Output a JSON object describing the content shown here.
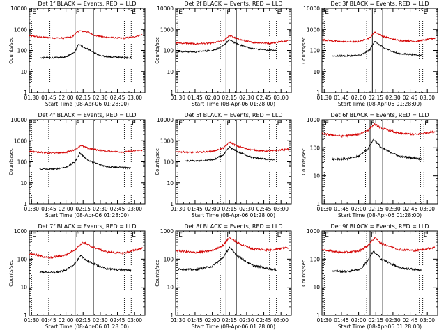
{
  "chart_data": [
    {
      "type": "line",
      "title": "Det 1f BLACK = Events, RED = LLD",
      "xlabel": "Start Time (08-Apr-06 01:28:00)",
      "ylabel": "Counts/sec",
      "x_ticks": [
        "01:30",
        "01:45",
        "02:00",
        "02:15",
        "02:30",
        "02:45",
        "03:00"
      ],
      "y_ticks": [
        "1",
        "10",
        "100",
        "1000",
        "10000"
      ],
      "y_scale": "log",
      "ylim": [
        1,
        10000
      ],
      "xlim": [
        "01:28",
        "03:09"
      ],
      "markers": [
        {
          "label": "E",
          "x": "01:30",
          "style": "dotted"
        },
        {
          "label": "",
          "x": "01:46",
          "style": "dotted"
        },
        {
          "label": "F",
          "x": "02:08",
          "style": "solid"
        },
        {
          "label": "",
          "x": "02:24",
          "style": "solid"
        },
        {
          "label": "",
          "x": "02:51",
          "style": "dotted"
        },
        {
          "label": "E",
          "x": "02:57",
          "style": "dotted"
        }
      ],
      "series": [
        {
          "color": "#d40000",
          "x": [
            "01:28",
            "01:40",
            "01:55",
            "02:05",
            "02:10",
            "02:12",
            "02:18",
            "02:26",
            "02:35",
            "02:50",
            "02:58",
            "03:07"
          ],
          "values": [
            500,
            420,
            380,
            420,
            750,
            850,
            780,
            500,
            420,
            380,
            420,
            560
          ]
        },
        {
          "color": "#000000",
          "x": [
            "01:38",
            "01:50",
            "02:00",
            "02:08",
            "02:11",
            "02:15",
            "02:22",
            "02:30",
            "02:42",
            "02:57"
          ],
          "values": [
            45,
            45,
            48,
            90,
            200,
            150,
            95,
            55,
            48,
            45
          ]
        }
      ]
    },
    {
      "type": "line",
      "title": "Det 2f BLACK = Events, RED = LLD",
      "xlabel": "Start Time (08-Apr-06 01:28:00)",
      "ylabel": "Counts/sec",
      "x_ticks": [
        "01:30",
        "01:45",
        "02:00",
        "02:15",
        "02:30",
        "02:45",
        "03:00"
      ],
      "y_ticks": [
        "1",
        "10",
        "100",
        "1000",
        "10000"
      ],
      "y_scale": "log",
      "ylim": [
        1,
        10000
      ],
      "xlim": [
        "01:28",
        "03:09"
      ],
      "markers": [
        {
          "label": "E",
          "x": "01:30",
          "style": "dotted"
        },
        {
          "label": "",
          "x": "02:07",
          "style": "dotted"
        },
        {
          "label": "F",
          "x": "02:12",
          "style": "solid"
        },
        {
          "label": "",
          "x": "02:21",
          "style": "solid"
        },
        {
          "label": "",
          "x": "02:50",
          "style": "dotted"
        },
        {
          "label": "E",
          "x": "02:56",
          "style": "dotted"
        }
      ],
      "series": [
        {
          "color": "#d40000",
          "x": [
            "01:28",
            "01:45",
            "02:00",
            "02:10",
            "02:15",
            "02:22",
            "02:35",
            "02:50",
            "03:07"
          ],
          "values": [
            230,
            210,
            220,
            300,
            520,
            350,
            240,
            220,
            300
          ]
        },
        {
          "color": "#000000",
          "x": [
            "01:30",
            "01:45",
            "02:00",
            "02:08",
            "02:15",
            "02:22",
            "02:35",
            "02:57"
          ],
          "values": [
            90,
            85,
            100,
            140,
            320,
            200,
            120,
            95
          ]
        }
      ]
    },
    {
      "type": "line",
      "title": "Det 3f BLACK = Events, RED = LLD",
      "xlabel": "Start Time (08-Apr-06 01:28:00)",
      "ylabel": "Counts/sec",
      "x_ticks": [
        "01:30",
        "01:45",
        "02:00",
        "02:15",
        "02:30",
        "02:45",
        "03:00"
      ],
      "y_ticks": [
        "1",
        "10",
        "100",
        "1000",
        "10000"
      ],
      "y_scale": "log",
      "ylim": [
        1,
        10000
      ],
      "xlim": [
        "01:28",
        "03:09"
      ],
      "markers": [
        {
          "label": "E",
          "x": "01:30",
          "style": "dotted"
        },
        {
          "label": "",
          "x": "02:07",
          "style": "dotted"
        },
        {
          "label": "F",
          "x": "02:12",
          "style": "solid"
        },
        {
          "label": "",
          "x": "02:21",
          "style": "solid"
        },
        {
          "label": "",
          "x": "02:53",
          "style": "dotted"
        },
        {
          "label": "E",
          "x": "02:56",
          "style": "dotted"
        }
      ],
      "series": [
        {
          "color": "#d40000",
          "x": [
            "01:28",
            "01:45",
            "02:00",
            "02:10",
            "02:14",
            "02:22",
            "02:35",
            "02:50",
            "03:07"
          ],
          "values": [
            320,
            260,
            260,
            400,
            750,
            450,
            300,
            270,
            380
          ]
        },
        {
          "color": "#000000",
          "x": [
            "01:37",
            "01:50",
            "02:02",
            "02:10",
            "02:14",
            "02:22",
            "02:35",
            "02:55"
          ],
          "values": [
            55,
            55,
            60,
            110,
            280,
            130,
            70,
            60
          ]
        }
      ]
    },
    {
      "type": "line",
      "title": "Det 4f BLACK = Events, RED = LLD",
      "xlabel": "Start Time (08-Apr-06 01:28:00)",
      "ylabel": "Counts/sec",
      "x_ticks": [
        "01:30",
        "01:45",
        "02:00",
        "02:15",
        "02:30",
        "02:45",
        "03:00"
      ],
      "y_ticks": [
        "1",
        "10",
        "100",
        "1000",
        "10000"
      ],
      "y_scale": "log",
      "ylim": [
        1,
        10000
      ],
      "xlim": [
        "01:28",
        "03:09"
      ],
      "markers": [
        {
          "label": "E",
          "x": "01:30",
          "style": "dotted"
        },
        {
          "label": "",
          "x": "01:45",
          "style": "dotted"
        },
        {
          "label": "F",
          "x": "02:08",
          "style": "solid"
        },
        {
          "label": "",
          "x": "02:24",
          "style": "solid"
        },
        {
          "label": "",
          "x": "02:51",
          "style": "dotted"
        },
        {
          "label": "E",
          "x": "02:57",
          "style": "dotted"
        }
      ],
      "series": [
        {
          "color": "#d40000",
          "x": [
            "01:28",
            "01:45",
            "02:00",
            "02:08",
            "02:13",
            "02:20",
            "02:35",
            "02:50",
            "03:07"
          ],
          "values": [
            320,
            260,
            280,
            380,
            600,
            420,
            320,
            290,
            360
          ]
        },
        {
          "color": "#000000",
          "x": [
            "01:37",
            "01:50",
            "02:00",
            "02:08",
            "02:12",
            "02:20",
            "02:35",
            "02:57"
          ],
          "values": [
            45,
            45,
            55,
            100,
            260,
            110,
            60,
            50
          ]
        }
      ]
    },
    {
      "type": "line",
      "title": "Det 5f BLACK = Events, RED = LLD",
      "xlabel": "Start Time (08-Apr-06 01:28:00)",
      "ylabel": "Counts/sec",
      "x_ticks": [
        "01:30",
        "01:45",
        "02:00",
        "02:15",
        "02:30",
        "02:45",
        "03:00"
      ],
      "y_ticks": [
        "1",
        "10",
        "100",
        "1000",
        "10000"
      ],
      "y_scale": "log",
      "ylim": [
        1,
        10000
      ],
      "xlim": [
        "01:28",
        "03:09"
      ],
      "markers": [
        {
          "label": "E",
          "x": "01:30",
          "style": "dotted"
        },
        {
          "label": "",
          "x": "02:07",
          "style": "dotted"
        },
        {
          "label": "F",
          "x": "02:12",
          "style": "solid"
        },
        {
          "label": "",
          "x": "02:21",
          "style": "solid"
        },
        {
          "label": "",
          "x": "02:50",
          "style": "dotted"
        },
        {
          "label": "E",
          "x": "02:56",
          "style": "dotted"
        }
      ],
      "series": [
        {
          "color": "#d40000",
          "x": [
            "01:28",
            "01:45",
            "02:00",
            "02:10",
            "02:15",
            "02:22",
            "02:35",
            "02:50",
            "03:07"
          ],
          "values": [
            300,
            280,
            310,
            450,
            850,
            550,
            360,
            320,
            400
          ]
        },
        {
          "color": "#000000",
          "x": [
            "01:37",
            "01:50",
            "02:02",
            "02:10",
            "02:15",
            "02:22",
            "02:35",
            "02:55"
          ],
          "values": [
            110,
            110,
            130,
            220,
            500,
            300,
            160,
            120
          ]
        }
      ]
    },
    {
      "type": "line",
      "title": "Det 6f BLACK = Events, RED = LLD",
      "xlabel": "Start Time (08-Apr-06 01:28:00)",
      "ylabel": "Counts/sec",
      "x_ticks": [
        "01:30",
        "01:45",
        "02:00",
        "02:15",
        "02:30",
        "02:45",
        "03:00"
      ],
      "y_ticks": [
        "1",
        "10",
        "100",
        "1000"
      ],
      "y_scale": "log",
      "ylim": [
        1,
        1000
      ],
      "xlim": [
        "01:28",
        "03:09"
      ],
      "markers": [
        {
          "label": "E",
          "x": "01:30",
          "style": "dotted"
        },
        {
          "label": "",
          "x": "02:06",
          "style": "dotted"
        },
        {
          "label": "F",
          "x": "02:10",
          "style": "solid"
        },
        {
          "label": "",
          "x": "02:21",
          "style": "solid"
        },
        {
          "label": "",
          "x": "02:54",
          "style": "dotted"
        },
        {
          "label": "E",
          "x": "02:57",
          "style": "dotted"
        }
      ],
      "series": [
        {
          "color": "#d40000",
          "x": [
            "01:28",
            "01:45",
            "02:00",
            "02:08",
            "02:14",
            "02:20",
            "02:35",
            "02:50",
            "03:07"
          ],
          "values": [
            320,
            260,
            300,
            420,
            700,
            500,
            330,
            300,
            380
          ]
        },
        {
          "color": "#000000",
          "x": [
            "01:37",
            "01:50",
            "02:00",
            "02:08",
            "02:13",
            "02:20",
            "02:35",
            "02:55"
          ],
          "values": [
            40,
            40,
            50,
            90,
            200,
            100,
            50,
            40
          ]
        }
      ]
    },
    {
      "type": "line",
      "title": "Det 7f BLACK = Events, RED = LLD",
      "xlabel": "Start Time (08-Apr-06 01:28:00)",
      "ylabel": "Counts/sec",
      "x_ticks": [
        "01:30",
        "01:45",
        "02:00",
        "02:15",
        "02:30",
        "02:45",
        "03:00"
      ],
      "y_ticks": [
        "1",
        "10",
        "100",
        "1000"
      ],
      "y_scale": "log",
      "ylim": [
        1,
        1000
      ],
      "xlim": [
        "01:28",
        "03:09"
      ],
      "markers": [
        {
          "label": "E",
          "x": "01:30",
          "style": "dotted"
        },
        {
          "label": "",
          "x": "01:45",
          "style": "dotted"
        },
        {
          "label": "F",
          "x": "02:08",
          "style": "solid"
        },
        {
          "label": "",
          "x": "02:24",
          "style": "solid"
        },
        {
          "label": "",
          "x": "02:51",
          "style": "dotted"
        },
        {
          "label": "E",
          "x": "02:57",
          "style": "dotted"
        }
      ],
      "series": [
        {
          "color": "#d40000",
          "x": [
            "01:28",
            "01:45",
            "02:00",
            "02:08",
            "02:15",
            "02:22",
            "02:35",
            "02:50",
            "03:07"
          ],
          "values": [
            160,
            110,
            140,
            220,
            400,
            280,
            180,
            160,
            250
          ]
        },
        {
          "color": "#000000",
          "x": [
            "01:37",
            "01:50",
            "02:00",
            "02:08",
            "02:13",
            "02:20",
            "02:35",
            "02:57"
          ],
          "values": [
            35,
            33,
            40,
            70,
            130,
            80,
            45,
            40
          ]
        }
      ]
    },
    {
      "type": "line",
      "title": "Det 8f BLACK = Events, RED = LLD",
      "xlabel": "Start Time (08-Apr-06 01:28:00)",
      "ylabel": "Counts/sec",
      "x_ticks": [
        "01:30",
        "01:45",
        "02:00",
        "02:15",
        "02:30",
        "02:45",
        "03:00"
      ],
      "y_ticks": [
        "1",
        "10",
        "100",
        "1000"
      ],
      "y_scale": "log",
      "ylim": [
        1,
        1000
      ],
      "xlim": [
        "01:28",
        "03:09"
      ],
      "markers": [
        {
          "label": "E",
          "x": "01:30",
          "style": "dotted"
        },
        {
          "label": "",
          "x": "02:07",
          "style": "dotted"
        },
        {
          "label": "F",
          "x": "02:12",
          "style": "solid"
        },
        {
          "label": "",
          "x": "02:21",
          "style": "solid"
        },
        {
          "label": "",
          "x": "02:50",
          "style": "dotted"
        },
        {
          "label": "E",
          "x": "02:56",
          "style": "dotted"
        }
      ],
      "series": [
        {
          "color": "#d40000",
          "x": [
            "01:28",
            "01:45",
            "02:00",
            "02:10",
            "02:15",
            "02:22",
            "02:35",
            "02:50",
            "03:07"
          ],
          "values": [
            200,
            170,
            200,
            320,
            600,
            380,
            230,
            210,
            260
          ]
        },
        {
          "color": "#000000",
          "x": [
            "01:30",
            "01:45",
            "02:00",
            "02:10",
            "02:15",
            "02:22",
            "02:35",
            "02:57"
          ],
          "values": [
            45,
            42,
            55,
            120,
            260,
            130,
            60,
            40
          ]
        }
      ]
    },
    {
      "type": "line",
      "title": "Det 9f BLACK = Events, RED = LLD",
      "xlabel": "Start Time (08-Apr-06 01:28:00)",
      "ylabel": "Counts/sec",
      "x_ticks": [
        "01:30",
        "01:45",
        "02:00",
        "02:15",
        "02:30",
        "02:45",
        "03:00"
      ],
      "y_ticks": [
        "1",
        "10",
        "100",
        "1000"
      ],
      "y_scale": "log",
      "ylim": [
        1,
        1000
      ],
      "xlim": [
        "01:28",
        "03:09"
      ],
      "markers": [
        {
          "label": "E",
          "x": "01:30",
          "style": "dotted"
        },
        {
          "label": "",
          "x": "02:07",
          "style": "dotted"
        },
        {
          "label": "F",
          "x": "02:10",
          "style": "solid"
        },
        {
          "label": "",
          "x": "02:21",
          "style": "solid"
        },
        {
          "label": "",
          "x": "02:53",
          "style": "dotted"
        },
        {
          "label": "E",
          "x": "02:56",
          "style": "dotted"
        }
      ],
      "series": [
        {
          "color": "#d40000",
          "x": [
            "01:28",
            "01:45",
            "02:00",
            "02:08",
            "02:14",
            "02:20",
            "02:35",
            "02:50",
            "03:07"
          ],
          "values": [
            220,
            170,
            190,
            300,
            580,
            360,
            220,
            200,
            260
          ]
        },
        {
          "color": "#000000",
          "x": [
            "01:37",
            "01:50",
            "02:02",
            "02:08",
            "02:13",
            "02:20",
            "02:35",
            "02:55"
          ],
          "values": [
            38,
            36,
            45,
            90,
            190,
            100,
            50,
            40
          ]
        }
      ]
    }
  ]
}
